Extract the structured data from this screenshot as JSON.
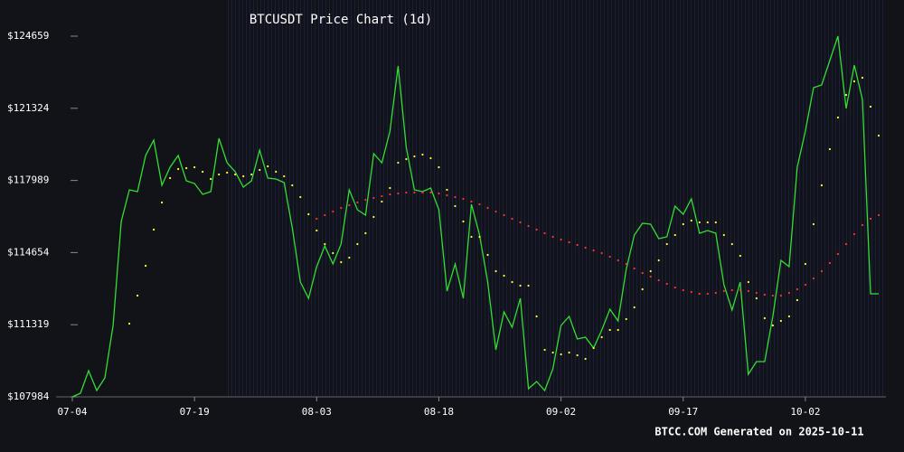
{
  "chart_data": {
    "type": "line",
    "title": "BTCUSDT Price Chart (1d)",
    "footer": "BTCC.COM Generated on 2025-10-11",
    "x": [
      "07-04",
      "07-05",
      "07-06",
      "07-07",
      "07-08",
      "07-09",
      "07-10",
      "07-11",
      "07-12",
      "07-13",
      "07-14",
      "07-15",
      "07-16",
      "07-17",
      "07-18",
      "07-19",
      "07-20",
      "07-21",
      "07-22",
      "07-23",
      "07-24",
      "07-25",
      "07-26",
      "07-27",
      "07-28",
      "07-29",
      "07-30",
      "07-31",
      "08-01",
      "08-02",
      "08-03",
      "08-04",
      "08-05",
      "08-06",
      "08-07",
      "08-08",
      "08-09",
      "08-10",
      "08-11",
      "08-12",
      "08-13",
      "08-14",
      "08-15",
      "08-16",
      "08-17",
      "08-18",
      "08-19",
      "08-20",
      "08-21",
      "08-22",
      "08-23",
      "08-24",
      "08-25",
      "08-26",
      "08-27",
      "08-28",
      "08-29",
      "08-30",
      "08-31",
      "09-01",
      "09-02",
      "09-03",
      "09-04",
      "09-05",
      "09-06",
      "09-07",
      "09-08",
      "09-09",
      "09-10",
      "09-11",
      "09-12",
      "09-13",
      "09-14",
      "09-15",
      "09-16",
      "09-17",
      "09-18",
      "09-19",
      "09-20",
      "09-21",
      "09-22",
      "09-23",
      "09-24",
      "09-25",
      "09-26",
      "09-27",
      "09-28",
      "09-29",
      "09-30",
      "10-01",
      "10-02",
      "10-03",
      "10-04",
      "10-05",
      "10-06",
      "10-07",
      "10-08",
      "10-09",
      "10-10",
      "10-11"
    ],
    "series": [
      {
        "color": "#33dd33",
        "marker": "line",
        "values": [
          107984,
          108151,
          109196,
          108277,
          108862,
          111285,
          116091,
          117554,
          117470,
          119142,
          119852,
          117763,
          118599,
          119142,
          117972,
          117846,
          117345,
          117470,
          119936,
          118808,
          118390,
          117679,
          117972,
          119393,
          118097,
          118055,
          117888,
          115798,
          113291,
          112539,
          114002,
          114963,
          114127,
          115046,
          117554,
          116635,
          116384,
          119226,
          118808,
          120271,
          123280,
          119518,
          117554,
          117470,
          117637,
          116635,
          112873,
          114127,
          112539,
          116885,
          115464,
          113291,
          110157,
          111912,
          111202,
          112539,
          108360,
          108694,
          108277,
          109280,
          111285,
          111703,
          110659,
          110742,
          110241,
          111076,
          112038,
          111494,
          113876,
          115464,
          116008,
          115966,
          115297,
          115381,
          116802,
          116426,
          117136,
          115548,
          115673,
          115548,
          113166,
          111996,
          113291,
          109029,
          109614,
          109614,
          111703,
          114294,
          114002,
          118599,
          120271,
          122276,
          122402,
          123530,
          124659,
          121315,
          123321,
          121733,
          112748,
          112748
        ]
      },
      {
        "color": "#ffff33",
        "marker": "dot",
        "values": [
          null,
          null,
          null,
          null,
          null,
          null,
          null,
          111369,
          112664,
          114044,
          115715,
          116969,
          118097,
          118515,
          118557,
          118599,
          118390,
          118055,
          118264,
          118348,
          118264,
          118181,
          118264,
          118473,
          118640,
          118390,
          118181,
          117763,
          117220,
          116426,
          115673,
          115047,
          114629,
          114211,
          114420,
          115047,
          115548,
          116300,
          117011,
          117637,
          118808,
          118975,
          119100,
          119184,
          119017,
          118599,
          117554,
          116802,
          116091,
          115381,
          115381,
          114545,
          113793,
          113584,
          113291,
          113124,
          113124,
          111703,
          110157,
          110032,
          109948,
          110032,
          109906,
          109739,
          110241,
          110742,
          111076,
          111076,
          111578,
          112121,
          112957,
          113793,
          114294,
          115047,
          115464,
          115966,
          116133,
          116049,
          116049,
          116049,
          115464,
          115047,
          114503,
          113291,
          112539,
          111620,
          111285,
          111494,
          111703,
          112456,
          114127,
          115966,
          117763,
          119434,
          120897,
          121942,
          122569,
          122736,
          121399,
          120061
        ]
      },
      {
        "color": "#ff3333",
        "marker": "dot",
        "values": [
          null,
          null,
          null,
          null,
          null,
          null,
          null,
          null,
          null,
          null,
          null,
          null,
          null,
          null,
          null,
          null,
          null,
          null,
          null,
          null,
          null,
          null,
          null,
          null,
          null,
          null,
          null,
          null,
          null,
          null,
          116217,
          116384,
          116551,
          116718,
          116843,
          116969,
          117094,
          117178,
          117261,
          117345,
          117387,
          117429,
          117429,
          117429,
          117429,
          117387,
          117303,
          117220,
          117136,
          117011,
          116885,
          116718,
          116551,
          116384,
          116217,
          116049,
          115882,
          115715,
          115548,
          115381,
          115255,
          115130,
          115005,
          114879,
          114754,
          114629,
          114461,
          114294,
          114127,
          113918,
          113709,
          113542,
          113375,
          113208,
          113041,
          112915,
          112832,
          112748,
          112748,
          112790,
          112873,
          112915,
          112915,
          112873,
          112790,
          112706,
          112664,
          112664,
          112790,
          112957,
          113166,
          113458,
          113793,
          114169,
          114587,
          115047,
          115506,
          115924,
          116217,
          116384
        ]
      }
    ],
    "ylim": [
      107984,
      124659
    ],
    "yticks": [
      {
        "value": 107984,
        "label": "$107984"
      },
      {
        "value": 111319,
        "label": "$111319"
      },
      {
        "value": 114654,
        "label": "$114654"
      },
      {
        "value": 117989,
        "label": "$117989"
      },
      {
        "value": 121324,
        "label": "$121324"
      },
      {
        "value": 124659,
        "label": "$124659"
      }
    ],
    "xticks": [
      "07-04",
      "07-19",
      "08-03",
      "08-18",
      "09-02",
      "09-17",
      "10-02"
    ]
  }
}
